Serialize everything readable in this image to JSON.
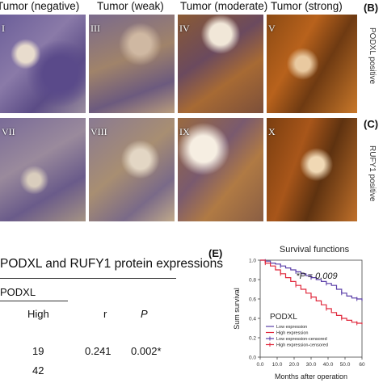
{
  "top_labels": [
    "Tumor (negative)",
    "Tumor (weak)",
    "Tumor (moderate)",
    "Tumor (strong)"
  ],
  "panel_numerals_row1": [
    "I",
    "III",
    "IV",
    "V"
  ],
  "panel_numerals_row2": [
    "VII",
    "VIII",
    "IX",
    "X"
  ],
  "side_letters": [
    "(B)",
    "(C)"
  ],
  "side_labels": [
    "PODXL positive",
    "RUFY1 positive"
  ],
  "table": {
    "title": "PODXL and RUFY1 protein expressions",
    "group": "PODXL",
    "col_high": "High",
    "col_r": "r",
    "col_p": "P",
    "row1": {
      "high": "19",
      "r": "0.241",
      "p": "0.002*"
    },
    "row2": {
      "high": "42"
    }
  },
  "chart_panel_letter": "(E)",
  "chart_data": {
    "type": "line",
    "title": "Survival functions",
    "xlabel": "Months after operation",
    "ylabel": "Sum survival",
    "xlim": [
      0,
      60
    ],
    "ylim": [
      0.0,
      1.0
    ],
    "xticks": [
      "0.0",
      "10.0",
      "20.0",
      "30.0",
      "40.0",
      "50.0",
      "60"
    ],
    "yticks": [
      "0.0",
      "0.2",
      "0.4",
      "0.6",
      "0.8",
      "1.0"
    ],
    "annotation": "*P = 0.009",
    "legend_title": "PODXL",
    "legend_entries": [
      "Low expression",
      "High expression",
      "Low expression-censored",
      "High expression-censored"
    ],
    "colors": {
      "low": "#5b3fa8",
      "high": "#e0283c"
    },
    "series": [
      {
        "name": "Low expression",
        "x": [
          0,
          3,
          6,
          9,
          12,
          15,
          18,
          21,
          24,
          27,
          30,
          33,
          36,
          39,
          42,
          45,
          48,
          51,
          54,
          57,
          60
        ],
        "y": [
          1.0,
          0.99,
          0.97,
          0.96,
          0.94,
          0.92,
          0.9,
          0.88,
          0.86,
          0.84,
          0.82,
          0.8,
          0.78,
          0.76,
          0.74,
          0.7,
          0.66,
          0.63,
          0.61,
          0.6,
          0.58
        ]
      },
      {
        "name": "High expression",
        "x": [
          0,
          3,
          6,
          9,
          12,
          15,
          18,
          21,
          24,
          27,
          30,
          33,
          36,
          39,
          42,
          45,
          48,
          51,
          54,
          57,
          60
        ],
        "y": [
          1.0,
          0.97,
          0.94,
          0.9,
          0.86,
          0.82,
          0.78,
          0.74,
          0.7,
          0.66,
          0.62,
          0.58,
          0.54,
          0.5,
          0.46,
          0.43,
          0.4,
          0.38,
          0.36,
          0.35,
          0.34
        ]
      }
    ]
  }
}
